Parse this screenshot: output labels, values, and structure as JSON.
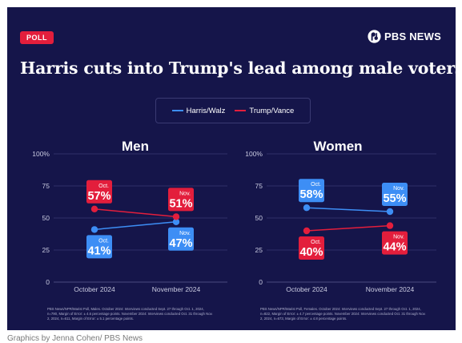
{
  "badge": "POLL",
  "brand": {
    "name": "PBS NEWS",
    "icon": "pbs-logo-icon"
  },
  "title": "Harris cuts into Trump's lead among male voters",
  "legend": [
    {
      "name": "Harris/Walz",
      "color": "#3d8ef5"
    },
    {
      "name": "Trump/Vance",
      "color": "#e31e3c"
    }
  ],
  "chart_data": [
    {
      "type": "line",
      "title": "Men",
      "categories": [
        "October 2024",
        "November 2024"
      ],
      "ylim": [
        0,
        100
      ],
      "yticks": [
        "0",
        "25",
        "50",
        "75",
        "100%"
      ],
      "grid": true,
      "series": [
        {
          "name": "Harris/Walz",
          "color": "#3d8ef5",
          "values": [
            41,
            47
          ],
          "labels": [
            [
              "Oct.",
              "41%"
            ],
            [
              "Nov.",
              "47%"
            ]
          ]
        },
        {
          "name": "Trump/Vance",
          "color": "#e31e3c",
          "values": [
            57,
            51
          ],
          "labels": [
            [
              "Oct.",
              "57%"
            ],
            [
              "Nov.",
              "51%"
            ]
          ]
        }
      ],
      "footnote": "PBS News/NPR/Marist Poll, Males. October 2024: Interviews conducted Sept. 27 through Oct. 1, 2024, n=790, Margin of Error: ± 4.6 percentage points. November 2024: Interviews conducted Oct. 31 through Nov. 2, 2024, n=611, Margin of Error: ± 5.1 percentage points."
    },
    {
      "type": "line",
      "title": "Women",
      "categories": [
        "October 2024",
        "November 2024"
      ],
      "ylim": [
        0,
        100
      ],
      "yticks": [
        "0",
        "25",
        "50",
        "75",
        "100%"
      ],
      "grid": true,
      "series": [
        {
          "name": "Harris/Walz",
          "color": "#3d8ef5",
          "values": [
            58,
            55
          ],
          "labels": [
            [
              "Oct.",
              "58%"
            ],
            [
              "Nov.",
              "55%"
            ]
          ]
        },
        {
          "name": "Trump/Vance",
          "color": "#e31e3c",
          "values": [
            40,
            44
          ],
          "labels": [
            [
              "Oct.",
              "40%"
            ],
            [
              "Nov.",
              "44%"
            ]
          ]
        }
      ],
      "footnote": "PBS News/NPR/Marist Poll, Females. October 2024: Interviews conducted Sept. 27 through Oct. 1, 2024, n=822, Margin of Error: ± 4.7 percentage points. November 2024: Interviews conducted Oct. 31 through Nov. 2, 2024, n=673, Margin of Error: ± 4.8 percentage points."
    }
  ],
  "credit": "Graphics by Jenna Cohen/ PBS News"
}
